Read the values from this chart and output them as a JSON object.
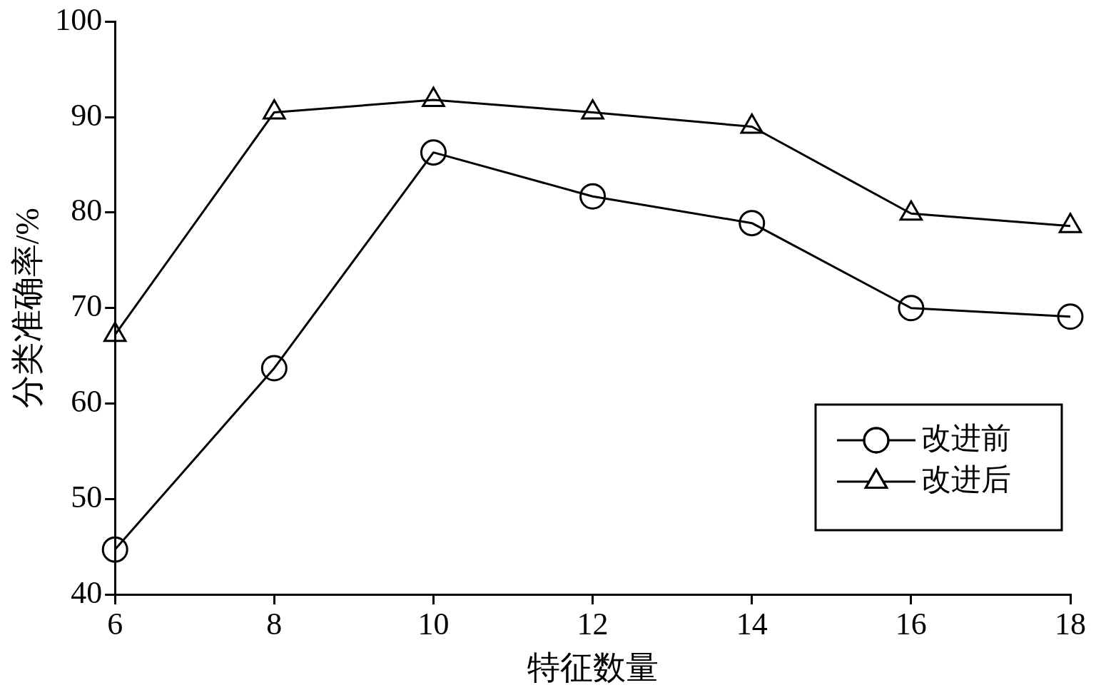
{
  "chart_data": {
    "type": "line",
    "xlabel": "特征数量",
    "ylabel": "分类准确率/%",
    "x": [
      6,
      8,
      10,
      12,
      14,
      16,
      18
    ],
    "series": [
      {
        "name": "改进前",
        "color": "#000000",
        "marker": "circle",
        "values": [
          44.7,
          63.7,
          86.3,
          81.7,
          78.9,
          70.0,
          69.1
        ]
      },
      {
        "name": "改进后",
        "color": "#000000",
        "marker": "triangle",
        "values": [
          67.2,
          90.5,
          91.8,
          90.5,
          89.0,
          79.9,
          78.6
        ]
      }
    ],
    "xlim": [
      6,
      18
    ],
    "xticks": [
      6,
      8,
      10,
      12,
      14,
      16,
      18
    ],
    "ylim": [
      40,
      100
    ],
    "yticks": [
      40,
      50,
      60,
      70,
      80,
      90,
      100
    ],
    "grid": false,
    "legend": "bottom right",
    "line_style": "solid"
  }
}
